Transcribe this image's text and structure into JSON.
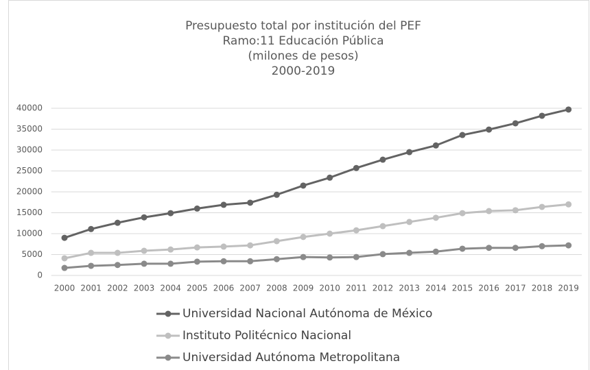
{
  "chart_data": {
    "type": "line",
    "title": [
      "Presupuesto total por institución del PEF",
      "Ramo:11 Educación Pública",
      "(milones de pesos)",
      "2000-2019"
    ],
    "categories": [
      "2000",
      "2001",
      "2002",
      "2003",
      "2004",
      "2005",
      "2006",
      "2007",
      "2008",
      "2009",
      "2010",
      "2011",
      "2012",
      "2013",
      "2014",
      "2015",
      "2016",
      "2017",
      "2018",
      "2019"
    ],
    "series": [
      {
        "name": "Universidad Nacional Autónoma de México",
        "color": "#636363",
        "values": [
          9000,
          11100,
          12600,
          13900,
          14900,
          16000,
          16900,
          17400,
          19300,
          21500,
          23400,
          25700,
          27700,
          29500,
          31100,
          33600,
          34900,
          36400,
          38200,
          39700
        ]
      },
      {
        "name": "Instituto Politécnico Nacional",
        "color": "#bfbfbf",
        "values": [
          4100,
          5400,
          5400,
          5900,
          6200,
          6700,
          6900,
          7200,
          8200,
          9200,
          10000,
          10800,
          11800,
          12800,
          13800,
          14900,
          15400,
          15600,
          16400,
          17000
        ]
      },
      {
        "name": "Universidad Autónoma Metropolitana",
        "color": "#8a8a8a",
        "values": [
          1800,
          2300,
          2500,
          2800,
          2800,
          3300,
          3400,
          3400,
          3900,
          4400,
          4300,
          4400,
          5100,
          5400,
          5700,
          6400,
          6600,
          6600,
          7000,
          7200
        ]
      }
    ],
    "ylim": [
      0,
      40000
    ],
    "yticks": [
      0,
      5000,
      10000,
      15000,
      20000,
      25000,
      30000,
      35000,
      40000
    ],
    "grid": true,
    "legend": "bottom"
  }
}
